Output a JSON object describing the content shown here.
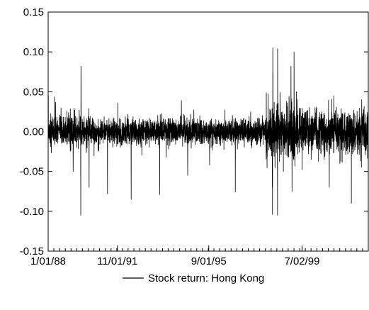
{
  "chart_data": {
    "type": "line",
    "title": "",
    "xlabel": "",
    "ylabel": "",
    "x_range": [
      "1/01/88",
      "31/12/01"
    ],
    "ylim": [
      -0.15,
      0.15
    ],
    "x_tick_labels": [
      "1/01/88",
      "11/01/91",
      "9/01/95",
      "7/02/99"
    ],
    "x_tick_dates": [
      "1988-01-01",
      "1991-01-11",
      "1995-01-09",
      "1999-02-07"
    ],
    "y_ticks": [
      0.15,
      0.1,
      0.05,
      0.0,
      -0.05,
      -0.1,
      -0.15
    ],
    "y_tick_labels": [
      "0.15",
      "0.10",
      "0.05",
      "0.00",
      "-0.05",
      "-0.10",
      "-0.15"
    ],
    "grid": false,
    "legend_position": "bottom-center",
    "series": [
      {
        "name": "Stock return: Hong Kong",
        "color": "#000000",
        "frequency": "daily",
        "noted_spikes": [
          {
            "date": "1988-01-04",
            "value": 0.045
          },
          {
            "date": "1989-06-05",
            "value": -0.105
          },
          {
            "date": "1989-06-08",
            "value": 0.082
          },
          {
            "date": "1989-06-09",
            "value": 0.08
          },
          {
            "date": "1989-10-16",
            "value": -0.07
          },
          {
            "date": "1990-08-06",
            "value": -0.078
          },
          {
            "date": "1991-01-17",
            "value": 0.036
          },
          {
            "date": "1991-08-19",
            "value": -0.085
          },
          {
            "date": "1992-11-16",
            "value": -0.079
          },
          {
            "date": "1994-02-07",
            "value": -0.055
          },
          {
            "date": "1995-01-23",
            "value": -0.042
          },
          {
            "date": "1996-03-08",
            "value": -0.076
          },
          {
            "date": "1997-10-20",
            "value": -0.07
          },
          {
            "date": "1997-10-23",
            "value": -0.104
          },
          {
            "date": "1997-10-28",
            "value": 0.105
          },
          {
            "date": "1997-10-30",
            "value": 0.073
          },
          {
            "date": "1998-01-12",
            "value": -0.105
          },
          {
            "date": "1998-01-13",
            "value": 0.104
          },
          {
            "date": "1998-08-14",
            "value": 0.082
          },
          {
            "date": "1998-08-31",
            "value": -0.075
          },
          {
            "date": "1998-10-02",
            "value": 0.1
          },
          {
            "date": "2000-04-17",
            "value": -0.07
          },
          {
            "date": "2000-06-28",
            "value": 0.045
          },
          {
            "date": "2001-04-05",
            "value": -0.09
          },
          {
            "date": "2001-09-12",
            "value": -0.045
          },
          {
            "date": "2001-09-17",
            "value": 0.04
          }
        ]
      }
    ]
  }
}
